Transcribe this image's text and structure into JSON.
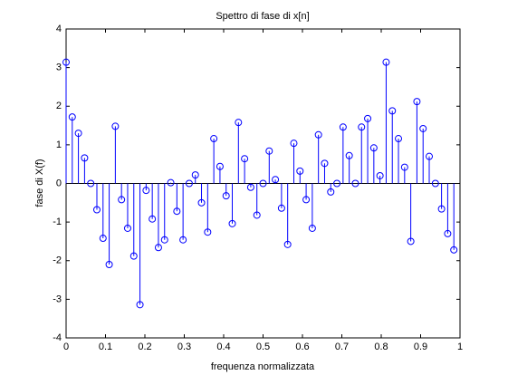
{
  "chart_data": {
    "type": "stem",
    "title": "Spettro di fase di x[n]",
    "xlabel": "frequenza normalizzata",
    "ylabel": "fase di X(f)",
    "color": "#0000ff",
    "grid": false,
    "x": [
      0,
      0.015625,
      0.03125,
      0.046875,
      0.0625,
      0.078125,
      0.09375,
      0.109375,
      0.125,
      0.140625,
      0.15625,
      0.171875,
      0.1875,
      0.203125,
      0.21875,
      0.234375,
      0.25,
      0.265625,
      0.28125,
      0.296875,
      0.3125,
      0.328125,
      0.34375,
      0.359375,
      0.375,
      0.390625,
      0.40625,
      0.421875,
      0.4375,
      0.453125,
      0.46875,
      0.484375,
      0.5,
      0.515625,
      0.53125,
      0.546875,
      0.5625,
      0.578125,
      0.59375,
      0.609375,
      0.625,
      0.640625,
      0.65625,
      0.671875,
      0.6875,
      0.703125,
      0.71875,
      0.734375,
      0.75,
      0.765625,
      0.78125,
      0.796875,
      0.8125,
      0.828125,
      0.84375,
      0.859375,
      0.875,
      0.890625,
      0.90625,
      0.921875,
      0.9375,
      0.953125,
      0.96875,
      0.984375
    ],
    "values": [
      3.14,
      1.72,
      1.3,
      0.66,
      0,
      -0.68,
      -1.42,
      -2.1,
      1.48,
      -0.42,
      -1.16,
      -1.88,
      -3.14,
      -0.18,
      -0.92,
      -1.66,
      -1.46,
      0.02,
      -0.72,
      -1.46,
      0,
      0.22,
      -0.5,
      -1.26,
      1.16,
      0.44,
      -0.32,
      -1.04,
      1.58,
      0.64,
      -0.1,
      -0.82,
      0,
      0.84,
      0.1,
      -0.64,
      -1.58,
      1.04,
      0.32,
      -0.42,
      -1.16,
      1.26,
      0.52,
      -0.22,
      0,
      1.46,
      0.72,
      0,
      1.46,
      1.68,
      0.92,
      0.2,
      3.14,
      1.88,
      1.16,
      0.42,
      -1.5,
      2.12,
      1.42,
      0.7,
      0,
      -0.66,
      -1.3,
      -1.72
    ],
    "xlim": [
      0,
      1
    ],
    "ylim": [
      -4,
      4
    ],
    "xticks": [
      0,
      0.1,
      0.2,
      0.3,
      0.4,
      0.5,
      0.6,
      0.7,
      0.8,
      0.9,
      1
    ],
    "yticks": [
      -4,
      -3,
      -2,
      -1,
      0,
      1,
      2,
      3,
      4
    ]
  }
}
